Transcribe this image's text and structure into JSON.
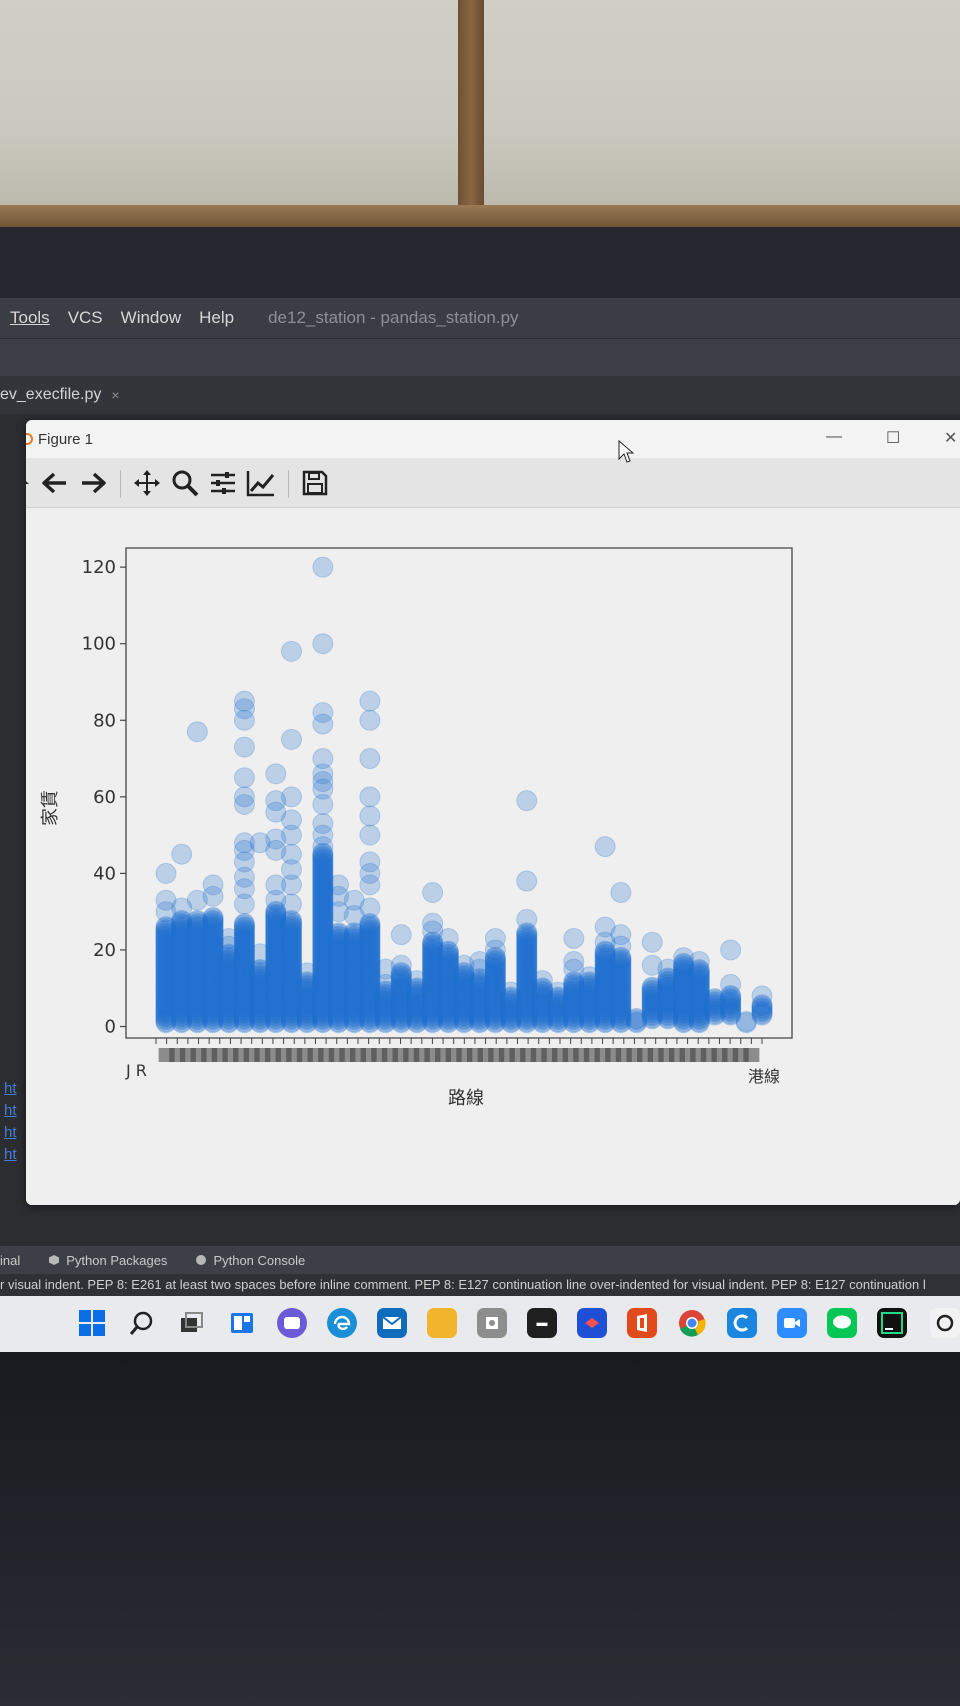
{
  "menubar": {
    "items": [
      "Tools",
      "VCS",
      "Window",
      "Help"
    ],
    "project_title": "de12_station - pandas_station.py"
  },
  "editor_tab": {
    "label": "ev_execfile.py",
    "close": "×"
  },
  "figure_window": {
    "title": "Figure 1",
    "controls": {
      "minimize": "—",
      "maximize": "☐",
      "close": "✕"
    },
    "toolbar": [
      "home-icon",
      "back-arrow-icon",
      "forward-arrow-icon",
      "pan-icon",
      "zoom-icon",
      "configure-subplots-icon",
      "edit-axis-icon",
      "save-icon"
    ]
  },
  "chart_data": {
    "type": "scatter",
    "title": "",
    "xlabel": "路線",
    "ylabel": "家賃",
    "ylim": [
      -3,
      125
    ],
    "yticks": [
      0,
      20,
      40,
      60,
      80,
      100,
      120
    ],
    "n_categories": 58,
    "xtick_first": "J R",
    "xtick_last": "港線",
    "marker_color": "#1f6fd1",
    "marker_alpha": 0.25,
    "grid": false,
    "columns": [
      {
        "i": 0,
        "lo": 1,
        "hi": 26,
        "out": [
          30,
          33,
          40
        ]
      },
      {
        "i": 1,
        "lo": 1,
        "hi": 28,
        "out": [
          31,
          45
        ]
      },
      {
        "i": 2,
        "lo": 1,
        "hi": 28,
        "out": [
          33,
          77
        ]
      },
      {
        "i": 3,
        "lo": 1,
        "hi": 29,
        "out": [
          34,
          37
        ]
      },
      {
        "i": 4,
        "lo": 1,
        "hi": 19,
        "out": [
          21,
          23
        ]
      },
      {
        "i": 5,
        "lo": 1,
        "hi": 27,
        "out": [
          32,
          36,
          39,
          43,
          46,
          48,
          58,
          60,
          65,
          73,
          80,
          83,
          85
        ]
      },
      {
        "i": 6,
        "lo": 1,
        "hi": 15,
        "out": [
          19,
          48
        ]
      },
      {
        "i": 7,
        "lo": 1,
        "hi": 30,
        "out": [
          33,
          37,
          46,
          49,
          56,
          59,
          66
        ]
      },
      {
        "i": 8,
        "lo": 1,
        "hi": 28,
        "out": [
          32,
          37,
          41,
          45,
          50,
          54,
          60,
          75,
          98
        ]
      },
      {
        "i": 9,
        "lo": 1,
        "hi": 12,
        "out": [
          14
        ]
      },
      {
        "i": 10,
        "lo": 1,
        "hi": 45,
        "out": [
          47,
          50,
          53,
          58,
          62,
          64,
          66,
          70,
          79,
          82,
          100,
          120
        ]
      },
      {
        "i": 11,
        "lo": 1,
        "hi": 25,
        "out": [
          30,
          34,
          37
        ]
      },
      {
        "i": 12,
        "lo": 1,
        "hi": 25,
        "out": [
          29,
          33
        ]
      },
      {
        "i": 13,
        "lo": 1,
        "hi": 27,
        "out": [
          31,
          37,
          40,
          43,
          50,
          55,
          60,
          70,
          80,
          85
        ]
      },
      {
        "i": 14,
        "lo": 1,
        "hi": 9,
        "out": [
          11,
          15
        ]
      },
      {
        "i": 15,
        "lo": 1,
        "hi": 14,
        "out": [
          16,
          24
        ]
      },
      {
        "i": 16,
        "lo": 1,
        "hi": 10,
        "out": [
          12
        ]
      },
      {
        "i": 17,
        "lo": 1,
        "hi": 22,
        "out": [
          25,
          27,
          35
        ]
      },
      {
        "i": 18,
        "lo": 1,
        "hi": 20,
        "out": [
          23
        ]
      },
      {
        "i": 19,
        "lo": 1,
        "hi": 14,
        "out": [
          16
        ]
      },
      {
        "i": 20,
        "lo": 1,
        "hi": 13,
        "out": [
          15,
          17
        ]
      },
      {
        "i": 21,
        "lo": 1,
        "hi": 18,
        "out": [
          20,
          23
        ]
      },
      {
        "i": 22,
        "lo": 1,
        "hi": 8,
        "out": [
          9
        ]
      },
      {
        "i": 23,
        "lo": 1,
        "hi": 25,
        "out": [
          28,
          38,
          59
        ]
      },
      {
        "i": 24,
        "lo": 1,
        "hi": 10,
        "out": [
          12
        ]
      },
      {
        "i": 25,
        "lo": 1,
        "hi": 8,
        "out": [
          9
        ]
      },
      {
        "i": 26,
        "lo": 1,
        "hi": 12,
        "out": [
          15,
          17,
          23
        ]
      },
      {
        "i": 27,
        "lo": 1,
        "hi": 12,
        "out": [
          13
        ]
      },
      {
        "i": 28,
        "lo": 1,
        "hi": 20,
        "out": [
          22,
          26,
          47
        ]
      },
      {
        "i": 29,
        "lo": 1,
        "hi": 18,
        "out": [
          21,
          24,
          35
        ]
      },
      {
        "i": 30,
        "lo": 1,
        "hi": 2,
        "out": []
      },
      {
        "i": 31,
        "lo": 2,
        "hi": 10,
        "out": [
          16,
          22
        ]
      },
      {
        "i": 32,
        "lo": 2,
        "hi": 13,
        "out": [
          15
        ]
      },
      {
        "i": 33,
        "lo": 1,
        "hi": 17,
        "out": [
          18
        ]
      },
      {
        "i": 34,
        "lo": 1,
        "hi": 15,
        "out": [
          17
        ]
      },
      {
        "i": 35,
        "lo": 3,
        "hi": 7,
        "out": []
      },
      {
        "i": 36,
        "lo": 3,
        "hi": 8,
        "out": [
          11,
          20
        ]
      },
      {
        "i": 37,
        "lo": 1,
        "hi": 1,
        "out": []
      },
      {
        "i": 38,
        "lo": 3,
        "hi": 6,
        "out": [
          8
        ]
      }
    ]
  },
  "tool_windows": {
    "terminal": "inal",
    "packages": "Python Packages",
    "console": "Python Console"
  },
  "status_text": "r visual indent. PEP 8: E261 at least two spaces before inline comment. PEP 8: E127 continuation line over-indented for visual indent. PEP 8: E127 continuation l",
  "links": [
    "ht",
    "ht",
    "ht",
    "ht"
  ],
  "taskbar_apps": [
    "windows-start-icon",
    "search-icon",
    "task-view-icon",
    "widgets-icon",
    "chat-icon",
    "edge-icon",
    "mail-icon",
    "file-explorer-icon",
    "app-icon",
    "terminal-app-icon",
    "app-icon-blue",
    "office-icon",
    "chrome-icon",
    "app-icon-c",
    "zoom-icon",
    "line-icon",
    "pycharm-icon",
    "app-icon-partial"
  ]
}
